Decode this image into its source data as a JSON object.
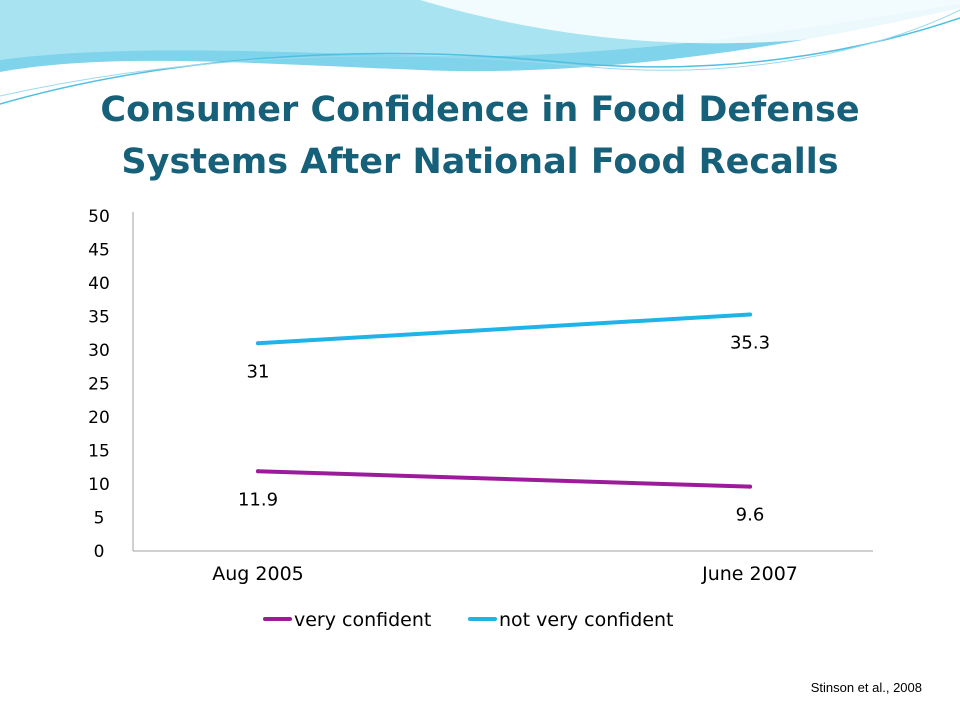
{
  "slide": {
    "title_line1": "Consumer Confidence in Food Defense",
    "title_line2": "Systems After National Food Recalls",
    "citation": "Stinson et al., 2008"
  },
  "colors": {
    "title": "#17607a",
    "very_confident": "#9b1b9b",
    "not_very_confident": "#1fb4e8",
    "axis": "#a0a0a0"
  },
  "chart_data": {
    "type": "line",
    "categories": [
      "Aug 2005",
      "June 2007"
    ],
    "series": [
      {
        "name": "very confident",
        "values": [
          11.9,
          9.6
        ],
        "labels": [
          "11.9",
          "9.6"
        ],
        "color": "#9b1b9b"
      },
      {
        "name": "not very confident",
        "values": [
          31,
          35.3
        ],
        "labels": [
          "31",
          "35.3"
        ],
        "color": "#1fb4e8"
      }
    ],
    "ylim": [
      0,
      50
    ],
    "yticks": [
      "0",
      "5",
      "10",
      "15",
      "20",
      "25",
      "30",
      "35",
      "40",
      "45",
      "50"
    ],
    "legend_position": "bottom",
    "grid": false
  }
}
